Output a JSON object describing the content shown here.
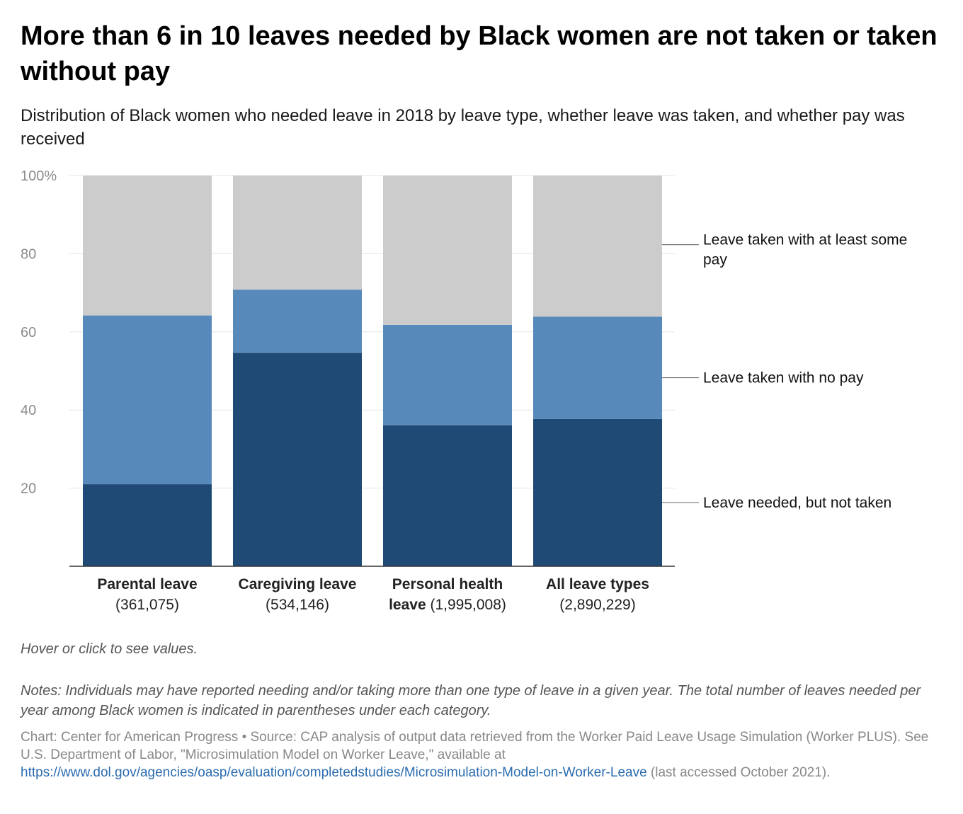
{
  "title": "More than 6 in 10 leaves needed by Black women are not taken or taken without pay",
  "subtitle": "Distribution of Black women who needed leave in 2018 by leave type, whether leave was taken, and whether pay was received",
  "hover_note": "Hover or click to see values.",
  "notes": "Notes: Individuals may have reported needing and/or taking more than one type of leave in a given year. The total number of leaves needed per year among Black women is indicated in parentheses under each category.",
  "credits": {
    "prefix": "Chart: Center for American Progress • Source: CAP analysis of output data retrieved from the Worker Paid Leave Usage Simulation (Worker PLUS). See U.S. Department of Labor, \"Microsimulation Model on Worker Leave,\" available at ",
    "link": "https://www.dol.gov/agencies/oasp/evaluation/completedstudies/Microsimulation-Model-on-Worker-Leave",
    "suffix": " (last accessed October 2021)."
  },
  "colors": {
    "not_taken": "#1f4a75",
    "no_pay": "#5889bb",
    "some_pay": "#cccccc",
    "grid": "#e6e6e6",
    "axis": "#333333",
    "leader": "#777777"
  },
  "chart_data": {
    "type": "bar",
    "stacked": true,
    "ylim": [
      0,
      100
    ],
    "yticks": [
      "20",
      "40",
      "60",
      "80",
      "100%"
    ],
    "ytick_values": [
      20,
      40,
      60,
      80,
      100
    ],
    "categories": [
      {
        "name": "Parental leave",
        "count": "(361,075)"
      },
      {
        "name": "Caregiving leave",
        "count": "(534,146)"
      },
      {
        "name": "Personal health leave",
        "count": "(1,995,008)"
      },
      {
        "name": "All leave types",
        "count": "(2,890,229)"
      }
    ],
    "category_label_lines": [
      [
        {
          "bold": "Parental leave",
          "normal": ""
        },
        {
          "bold": "",
          "normal": "(361,075)"
        }
      ],
      [
        {
          "bold": "Caregiving leave",
          "normal": ""
        },
        {
          "bold": "",
          "normal": "(534,146)"
        }
      ],
      [
        {
          "bold": "Personal health",
          "normal": ""
        },
        {
          "bold": "leave",
          "normal": " (1,995,008)"
        }
      ],
      [
        {
          "bold": "All leave types",
          "normal": ""
        },
        {
          "bold": "",
          "normal": "(2,890,229)"
        }
      ]
    ],
    "series": [
      {
        "name": "Leave needed, but not taken",
        "values": [
          21.0,
          54.6,
          36.1,
          37.7
        ]
      },
      {
        "name": "Leave taken with no pay",
        "values": [
          43.2,
          16.2,
          25.7,
          26.2
        ]
      },
      {
        "name": "Leave taken with at least some pay",
        "values": [
          35.8,
          29.2,
          38.2,
          36.1
        ]
      }
    ],
    "legend_position": "right"
  }
}
